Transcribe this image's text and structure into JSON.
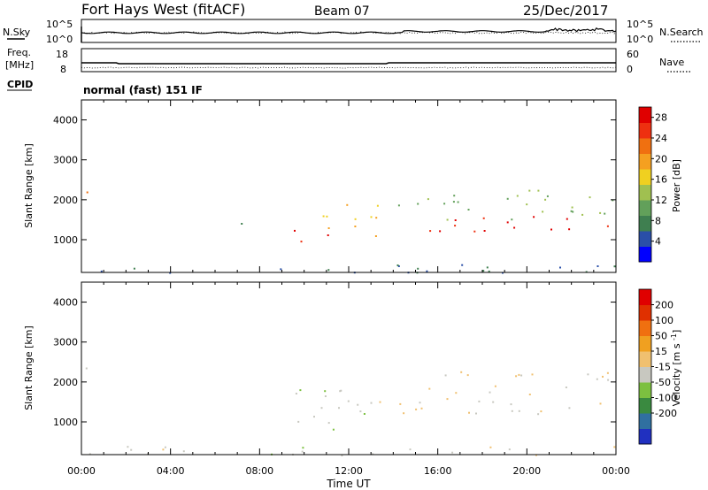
{
  "header": {
    "station": "Fort Hays West (fitACF)",
    "beam": "Beam 07",
    "date": "25/Dec/2017"
  },
  "noise_panel": {
    "left_label": "N.Sky",
    "left_ticks": [
      "10^5",
      "10^0"
    ],
    "right_label": "N.Search",
    "right_ticks": [
      "10^5",
      "10^0"
    ]
  },
  "freq_panel": {
    "left_label_line1": "Freq.",
    "left_label_line2": "[MHz]",
    "left_ticks": [
      "18",
      "8"
    ],
    "right_label": "Nave",
    "right_ticks": [
      "60",
      "0"
    ]
  },
  "cpid": {
    "label": "CPID",
    "value": "normal (fast) 151 IF"
  },
  "x_axis": {
    "label": "Time UT",
    "ticks": [
      "00:00",
      "04:00",
      "08:00",
      "12:00",
      "16:00",
      "20:00",
      "00:00"
    ]
  },
  "chart_data": [
    {
      "type": "heatmap",
      "title": "",
      "xlabel": "Time UT",
      "ylabel": "Slant Range [km]",
      "y_ticks": [
        "1000",
        "2000",
        "3000",
        "4000"
      ],
      "ylim": [
        180,
        4500
      ],
      "xlim": [
        0,
        24
      ],
      "colorbar": {
        "label": "Power [dB]",
        "ticks": [
          "4",
          "8",
          "12",
          "16",
          "20",
          "24",
          "28"
        ],
        "colors": [
          "#0000ff",
          "#2a4fa8",
          "#3f7f50",
          "#62a05a",
          "#a0c050",
          "#f0d020",
          "#f5a020",
          "#f07010",
          "#ee3010",
          "#e00000"
        ],
        "range": [
          0,
          30
        ]
      },
      "regions": [
        {
          "t0": 0.0,
          "t1": 0.4,
          "r0": 2000,
          "r1": 2500,
          "value": 22
        },
        {
          "t0": 9.5,
          "t1": 11.2,
          "r0": 800,
          "r1": 1300,
          "value": 26
        },
        {
          "t0": 10.5,
          "t1": 13.3,
          "r0": 1000,
          "r1": 1900,
          "value": 18
        },
        {
          "t0": 6.8,
          "t1": 7.2,
          "r0": 1200,
          "r1": 1500,
          "value": 10
        },
        {
          "t0": 14.2,
          "t1": 24.0,
          "r0": 1500,
          "r1": 2300,
          "value": 12
        },
        {
          "t0": 15.5,
          "t1": 24.0,
          "r0": 1200,
          "r1": 1600,
          "value": 28
        },
        {
          "t0": 0.0,
          "t1": 24.0,
          "r0": 180,
          "r1": 400,
          "value": 6
        }
      ]
    },
    {
      "type": "heatmap",
      "title": "",
      "xlabel": "Time UT",
      "ylabel": "Slant Range [km]",
      "y_ticks": [
        "1000",
        "2000",
        "3000",
        "4000"
      ],
      "ylim": [
        180,
        4500
      ],
      "xlim": [
        0,
        24
      ],
      "colorbar": {
        "label": "Velocity [m s^-1]",
        "ticks": [
          "200",
          "100",
          "50",
          "15",
          "-15",
          "-50",
          "-100",
          "-200"
        ],
        "colors": [
          "#2030c0",
          "#3070a0",
          "#3a8a40",
          "#7cc040",
          "#c8c8c0",
          "#f0c070",
          "#f0a020",
          "#f07010",
          "#e03000",
          "#e00000"
        ],
        "range": [
          -250,
          250
        ]
      },
      "regions": [
        {
          "t0": 0.0,
          "t1": 0.4,
          "r0": 2000,
          "r1": 2500,
          "value": 0
        },
        {
          "t0": 9.5,
          "t1": 13.3,
          "r0": 800,
          "r1": 1900,
          "value": -40
        },
        {
          "t0": 13.0,
          "t1": 13.4,
          "r0": 1300,
          "r1": 1800,
          "value": 40
        },
        {
          "t0": 14.2,
          "t1": 24.0,
          "r0": 1200,
          "r1": 2300,
          "value": 0
        },
        {
          "t0": 0.0,
          "t1": 24.0,
          "r0": 180,
          "r1": 400,
          "value": -20
        }
      ]
    }
  ]
}
